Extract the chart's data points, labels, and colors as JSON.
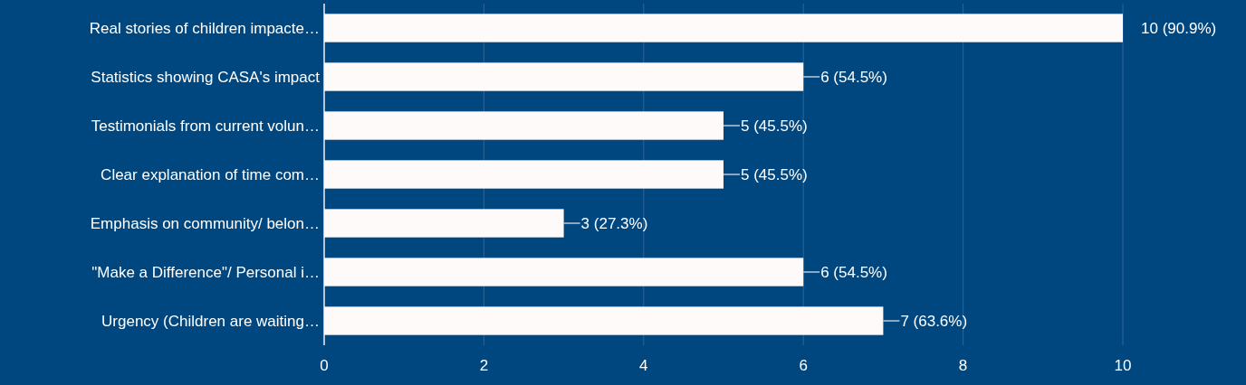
{
  "chart_data": {
    "type": "bar",
    "orientation": "horizontal",
    "categories": [
      "Real stories of children impacte…",
      "Statistics showing CASA's impact",
      "Testimonials from current volun…",
      "Clear explanation of time com…",
      "Emphasis on community/ belon…",
      "\"Make a Difference\"/ Personal i…",
      "Urgency (Children are waiting…"
    ],
    "values": [
      10,
      6,
      5,
      5,
      3,
      6,
      7
    ],
    "value_labels": [
      "10 (90.9%)",
      "6 (54.5%)",
      "5 (45.5%)",
      "5 (45.5%)",
      "3 (27.3%)",
      "6 (54.5%)",
      "7 (63.6%)"
    ],
    "color": "#fffafa",
    "xlim": [
      0,
      10
    ],
    "xticks": [
      0,
      2,
      4,
      6,
      8,
      10
    ],
    "grid": "x"
  }
}
